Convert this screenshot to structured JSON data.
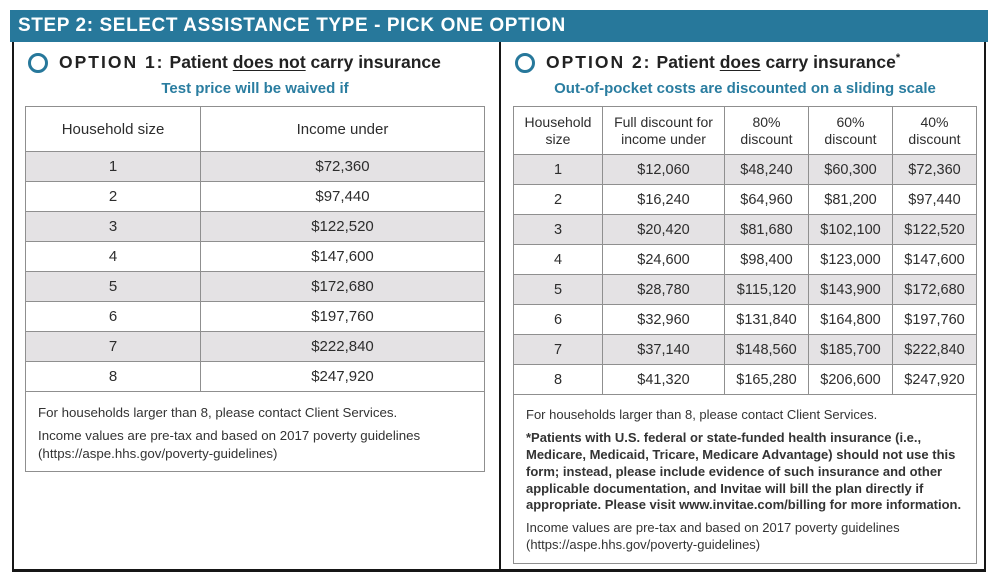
{
  "header": {
    "title": "STEP 2: SELECT ASSISTANCE TYPE - PICK ONE OPTION",
    "bar_color": "#27789b"
  },
  "accent_colors": {
    "teal": "#27789b",
    "row_shade": "#e4e2e4",
    "border_black": "#161616"
  },
  "option1": {
    "radio": {
      "selected": false
    },
    "prefix": "OPTION 1:",
    "label_pre": "Patient ",
    "label_underline": "does not",
    "label_post": " carry insurance",
    "subtitle": "Test price will be waived if",
    "table": {
      "headers": [
        "Household size",
        "Income under"
      ],
      "rows": [
        [
          "1",
          "$72,360"
        ],
        [
          "2",
          "$97,440"
        ],
        [
          "3",
          "$122,520"
        ],
        [
          "4",
          "$147,600"
        ],
        [
          "5",
          "$172,680"
        ],
        [
          "6",
          "$197,760"
        ],
        [
          "7",
          "$222,840"
        ],
        [
          "8",
          "$247,920"
        ]
      ]
    },
    "notes": [
      "For households larger than 8, please contact Client Services.",
      "Income values are pre-tax and based on 2017 poverty guidelines (https://aspe.hhs.gov/poverty-guidelines)"
    ]
  },
  "option2": {
    "radio": {
      "selected": false
    },
    "prefix": "OPTION 2:",
    "label_pre": "Patient ",
    "label_underline": "does",
    "label_post": " carry insurance",
    "superscript": "*",
    "subtitle": "Out-of-pocket costs are discounted on a sliding scale",
    "table": {
      "headers": [
        "Household size",
        "Full discount for income under",
        "80% discount",
        "60% discount",
        "40% discount"
      ],
      "rows": [
        [
          "1",
          "$12,060",
          "$48,240",
          "$60,300",
          "$72,360"
        ],
        [
          "2",
          "$16,240",
          "$64,960",
          "$81,200",
          "$97,440"
        ],
        [
          "3",
          "$20,420",
          "$81,680",
          "$102,100",
          "$122,520"
        ],
        [
          "4",
          "$24,600",
          "$98,400",
          "$123,000",
          "$147,600"
        ],
        [
          "5",
          "$28,780",
          "$115,120",
          "$143,900",
          "$172,680"
        ],
        [
          "6",
          "$32,960",
          "$131,840",
          "$164,800",
          "$197,760"
        ],
        [
          "7",
          "$37,140",
          "$148,560",
          "$185,700",
          "$222,840"
        ],
        [
          "8",
          "$41,320",
          "$165,280",
          "$206,600",
          "$247,920"
        ]
      ]
    },
    "notes": [
      "For households larger than 8, please contact Client Services.",
      "*Patients with U.S. federal or state-funded health insurance (i.e., Medicare, Medicaid, Tricare, Medicare Advantage) should not use this form; instead, please include evidence of such insurance and other applicable documentation, and Invitae will bill the plan directly if appropriate. Please visit www.invitae.com/billing for more information.",
      "Income values are pre-tax and based on 2017 poverty guidelines (https://aspe.hhs.gov/poverty-guidelines)"
    ]
  }
}
